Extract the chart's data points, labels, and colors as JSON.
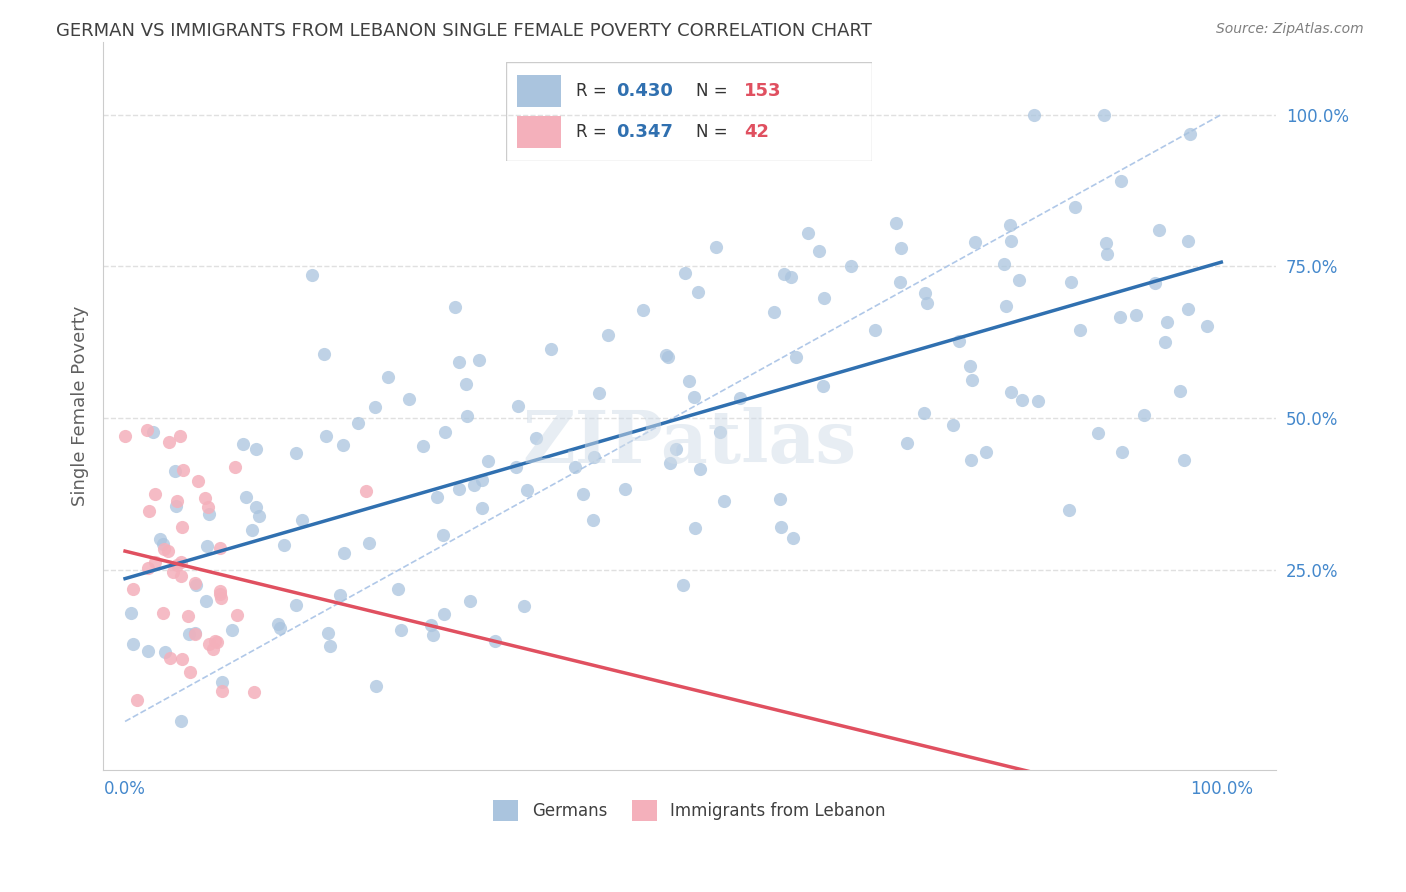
{
  "title": "GERMAN VS IMMIGRANTS FROM LEBANON SINGLE FEMALE POVERTY CORRELATION CHART",
  "source": "Source: ZipAtlas.com",
  "ylabel": "Single Female Poverty",
  "xlabel_ticks": [
    "0.0%",
    "100.0%"
  ],
  "ylabel_ticks": [
    "25.0%",
    "50.0%",
    "75.0%",
    "100.0%"
  ],
  "watermark": "ZIPatlas",
  "legend_entries": [
    {
      "label": "Germans",
      "color": "#a8c4e0",
      "marker_color": "#7bafd4"
    },
    {
      "label": "Immigrants from Lebanon",
      "color": "#f4b8c1",
      "marker_color": "#f08090"
    }
  ],
  "R_german": 0.43,
  "N_german": 153,
  "R_lebanon": 0.347,
  "N_lebanon": 42,
  "blue_color": "#5b9bd5",
  "pink_color": "#f08090",
  "blue_scatter": "#aac4de",
  "pink_scatter": "#f4b0bb",
  "line_blue": "#3070b0",
  "line_pink": "#e05060",
  "dashed_blue": "#b0c8e8",
  "dashed_pink": "#f0a0b0",
  "title_color": "#404040",
  "source_color": "#808080",
  "legend_text_color": "#3070b0",
  "seed_german": 42,
  "seed_lebanon": 123,
  "background_color": "#ffffff",
  "grid_color": "#e0e0e0"
}
